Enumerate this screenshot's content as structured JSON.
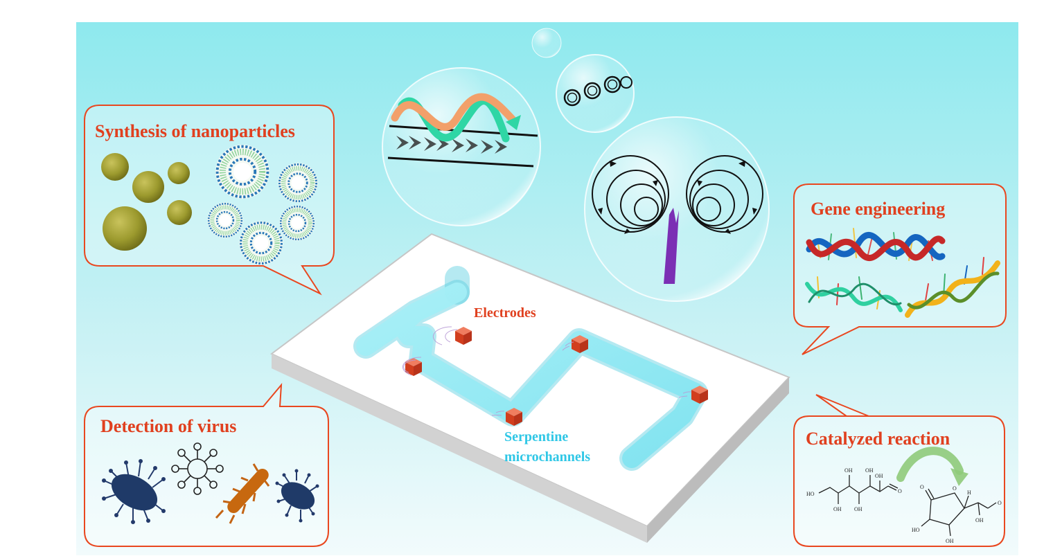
{
  "callouts": {
    "nanoparticles": "Synthesis of nanoparticles",
    "gene": "Gene engineering",
    "virus": "Detection of virus",
    "catalyzed": "Catalyzed reaction"
  },
  "chip": {
    "electrodes": "Electrodes",
    "serpentine_line1": "Serpentine",
    "serpentine_line2": "microchannels"
  },
  "molecules": {
    "oh": "OH",
    "ho": "HO",
    "h": "H",
    "o": "O"
  },
  "colors": {
    "title_red": "#e0401f",
    "serpentine_cyan": "#2fc7e6",
    "callout_border": "#e9471f",
    "electrode": "#e24b28",
    "background_top": "#8feaee",
    "background_bottom": "#f2fbfc"
  },
  "icons": [
    "acoustic-streaming-wave-icon",
    "microbubble-chain-icon",
    "vortex-flow-icon",
    "sharp-edge-icon",
    "dna-helix-icon",
    "virus-icon",
    "glucose-molecule-icon",
    "lactone-molecule-icon"
  ]
}
